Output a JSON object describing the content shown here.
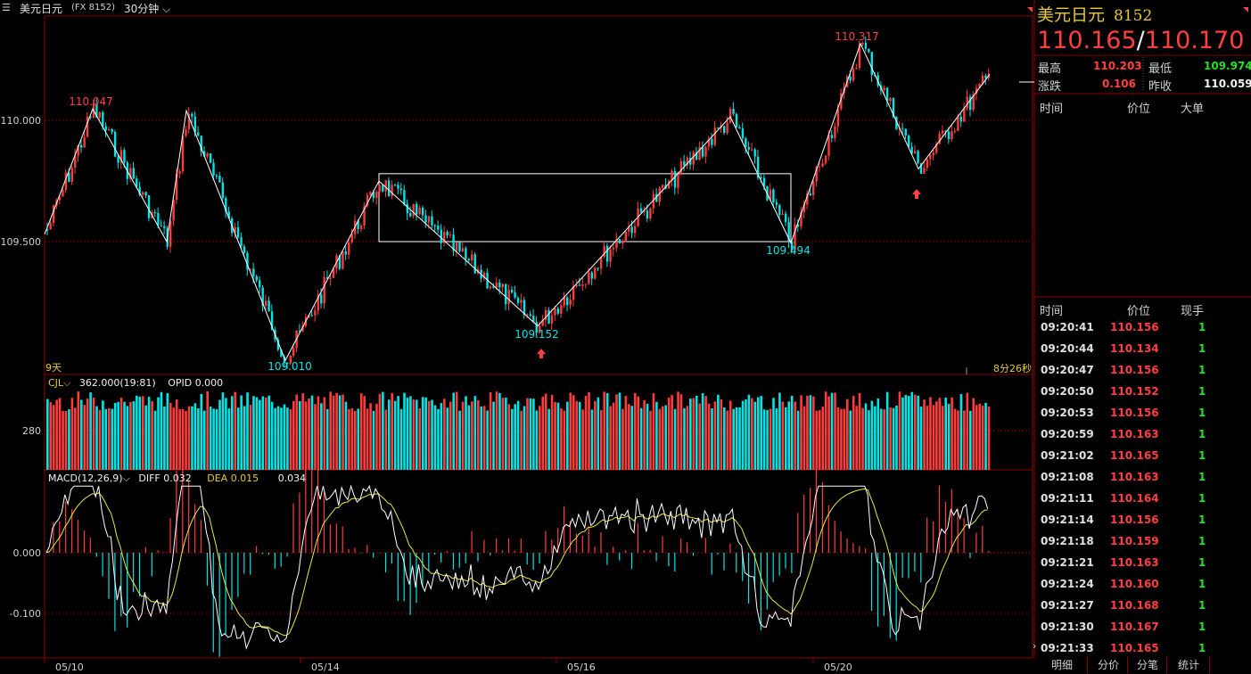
{
  "header": {
    "symbol": "美元日元",
    "symbol_code": "(FX 8152)",
    "period": "30分钟"
  },
  "right_panel": {
    "title": "美元日元",
    "code": "8152",
    "bid": "110.165",
    "separator": "/",
    "ask": "110.170",
    "stats": {
      "high_label": "最高",
      "high": "110.203",
      "low_label": "最低",
      "low": "109.974",
      "change_label": "涨跌",
      "change": "0.106",
      "prev_close_label": "昨收",
      "prev_close": "110.059"
    },
    "big_orders_header": {
      "time": "时间",
      "price": "价位",
      "big": "大单"
    },
    "ticks_header": {
      "time": "时间",
      "price": "价位",
      "hand": "现手"
    },
    "ticks": [
      {
        "time": "09:20:41",
        "price": "110.156",
        "hand": "1"
      },
      {
        "time": "09:20:44",
        "price": "110.134",
        "hand": "1"
      },
      {
        "time": "09:20:47",
        "price": "110.156",
        "hand": "1"
      },
      {
        "time": "09:20:50",
        "price": "110.152",
        "hand": "1"
      },
      {
        "time": "09:20:53",
        "price": "110.156",
        "hand": "1"
      },
      {
        "time": "09:20:59",
        "price": "110.163",
        "hand": "1"
      },
      {
        "time": "09:21:02",
        "price": "110.165",
        "hand": "1"
      },
      {
        "time": "09:21:08",
        "price": "110.163",
        "hand": "1"
      },
      {
        "time": "09:21:11",
        "price": "110.164",
        "hand": "1"
      },
      {
        "time": "09:21:14",
        "price": "110.156",
        "hand": "1"
      },
      {
        "time": "09:21:18",
        "price": "110.159",
        "hand": "1"
      },
      {
        "time": "09:21:21",
        "price": "110.163",
        "hand": "1"
      },
      {
        "time": "09:21:24",
        "price": "110.160",
        "hand": "1"
      },
      {
        "time": "09:21:27",
        "price": "110.168",
        "hand": "1"
      },
      {
        "time": "09:21:30",
        "price": "110.167",
        "hand": "1"
      },
      {
        "time": "09:21:33",
        "price": "110.165",
        "hand": "1"
      }
    ],
    "tabs": [
      "明细",
      "分价",
      "分笔",
      "统计"
    ]
  },
  "chart_data": {
    "type": "candlestick",
    "x_labels": [
      "05/10",
      "05/14",
      "05/16",
      "05/20"
    ],
    "price_ticks": [
      "110.000",
      "109.500"
    ],
    "span_label": "9天",
    "countdown": "8分26秒",
    "annotations": [
      {
        "label": "110.047",
        "value": 110.047,
        "kind": "high"
      },
      {
        "label": "109.010",
        "value": 109.01,
        "kind": "low"
      },
      {
        "label": "109.152",
        "value": 109.152,
        "kind": "low"
      },
      {
        "label": "109.494",
        "value": 109.494,
        "kind": "low"
      },
      {
        "label": "110.317",
        "value": 110.317,
        "kind": "high"
      }
    ],
    "zigzag": [
      109.53,
      110.047,
      109.5,
      110.04,
      109.01,
      109.75,
      109.152,
      110.015,
      109.494,
      110.317,
      109.8,
      110.19
    ],
    "box": {
      "top": 109.78,
      "bottom": 109.5
    },
    "volume": {
      "indicator": "CJL",
      "value": "362.000(19:81)",
      "opid": "OPID 0.000",
      "tick": "280"
    },
    "macd": {
      "indicator": "MACD(12,26,9)",
      "diff": "DIFF 0.032",
      "dea": "DEA 0.015",
      "macd": "0.034",
      "ticks": [
        "0.000",
        "-0.100"
      ]
    },
    "colors": {
      "up": "#ff3c3c",
      "down": "#00e5e5",
      "dea": "#e8e840",
      "diff": "#ffffff",
      "grid": "#8b0000"
    }
  }
}
